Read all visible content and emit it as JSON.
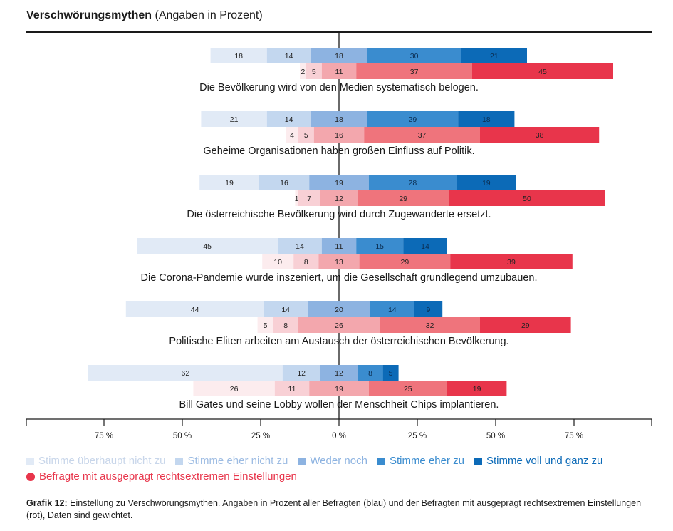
{
  "header": {
    "title_bold": "Verschwörungsmythen",
    "title_rest": "(Angaben in Prozent)"
  },
  "chart_data": {
    "type": "bar",
    "subtype": "diverging-stacked-horizontal",
    "title": "Verschwörungsmythen (Angaben in Prozent)",
    "x_ticks": [
      "75 %",
      "50 %",
      "25 %",
      "0 %",
      "25 %",
      "50 %",
      "75 %"
    ],
    "xlim": [
      -100,
      100
    ],
    "categories": [
      "Stimme überhaupt nicht zu",
      "Stimme eher nicht zu",
      "Weder noch",
      "Stimme eher zu",
      "Stimme voll und ganz zu"
    ],
    "colors_blue": [
      "#e1eaf6",
      "#c3d7ef",
      "#8db3e1",
      "#3a8ccf",
      "#0c6ab7"
    ],
    "colors_red": [
      "#fcecee",
      "#f8d0d5",
      "#f3a7ad",
      "#ef747c",
      "#e8354b"
    ],
    "groups": [
      {
        "label": "Die Bevölkerung wird von den Medien systematisch belogen.",
        "blue": [
          18,
          14,
          18,
          30,
          21
        ],
        "red": [
          2,
          5,
          11,
          37,
          45
        ]
      },
      {
        "label": "Geheime Organisationen haben großen Einfluss auf Politik.",
        "blue": [
          21,
          14,
          18,
          29,
          18
        ],
        "red": [
          4,
          5,
          16,
          37,
          38
        ]
      },
      {
        "label": "Die österreichische Bevölkerung wird durch Zugewanderte ersetzt.",
        "blue": [
          19,
          16,
          19,
          28,
          19
        ],
        "red": [
          1,
          7,
          12,
          29,
          50
        ]
      },
      {
        "label": "Die Corona-Pandemie wurde inszeniert, um die Gesellschaft grundlegend umzubauen.",
        "blue": [
          45,
          14,
          11,
          15,
          14
        ],
        "red": [
          10,
          8,
          13,
          29,
          39
        ]
      },
      {
        "label": "Politische Eliten arbeiten am Austausch der österreichischen Bevölkerung.",
        "blue": [
          44,
          14,
          20,
          14,
          9
        ],
        "red": [
          5,
          8,
          26,
          32,
          29
        ]
      },
      {
        "label": "Bill Gates und seine Lobby wollen der Menschheit Chips implantieren.",
        "blue": [
          62,
          12,
          12,
          8,
          5
        ],
        "red": [
          26,
          11,
          19,
          25,
          19
        ]
      }
    ]
  },
  "legend": {
    "items": [
      {
        "label": "Stimme überhaupt nicht zu",
        "color": "#e1eaf6"
      },
      {
        "label": "Stimme eher nicht zu",
        "color": "#c3d7ef"
      },
      {
        "label": "Weder noch",
        "color": "#8db3e1"
      },
      {
        "label": "Stimme eher zu",
        "color": "#3a8ccf"
      },
      {
        "label": "Stimme voll und ganz zu",
        "color": "#0c6ab7"
      }
    ],
    "red_label": "Befragte mit ausgeprägt rechtsextremen Einstellungen",
    "red_color": "#e8354b"
  },
  "caption": {
    "bold": "Grafik 12:",
    "text": "Einstellung zu Verschwörungsmythen. Angaben in Prozent aller Befragten (blau) und der Befragten mit ausgeprägt rechtsextremen Einstellungen (rot), Daten sind gewichtet."
  }
}
